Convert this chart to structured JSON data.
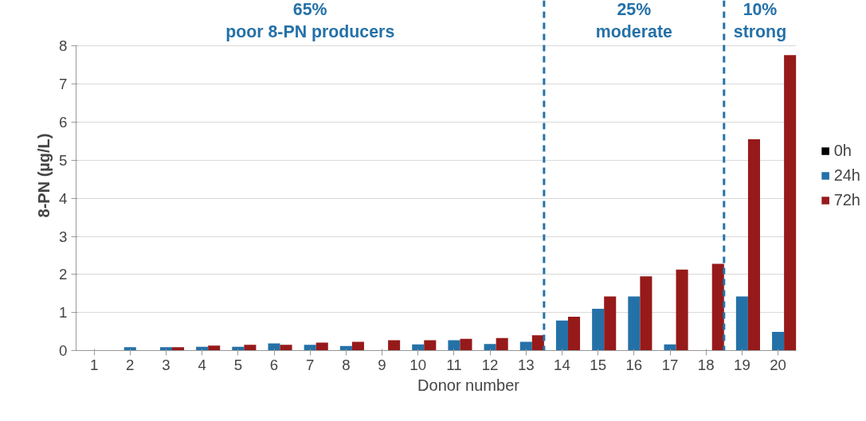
{
  "chart_data": {
    "type": "bar",
    "xlabel": "Donor number",
    "ylabel": "8-PN (µg/L)",
    "x": [
      1,
      2,
      3,
      4,
      5,
      6,
      7,
      8,
      9,
      10,
      11,
      12,
      13,
      14,
      15,
      16,
      17,
      18,
      19,
      20
    ],
    "xlim": [
      0.5,
      20.5
    ],
    "xticks": [
      1,
      2,
      3,
      4,
      5,
      6,
      7,
      8,
      9,
      10,
      11,
      12,
      13,
      14,
      15,
      16,
      17,
      18,
      19,
      20
    ],
    "ylim": [
      0,
      8
    ],
    "yticks": [
      0,
      1,
      2,
      3,
      4,
      5,
      6,
      7,
      8
    ],
    "grid": "y",
    "legend": "right",
    "series": [
      {
        "name": "0h",
        "color": "#000000",
        "values": [
          0,
          0,
          0,
          0,
          0,
          0,
          0,
          0,
          0,
          0,
          0,
          0,
          0,
          0,
          0,
          0,
          0,
          0,
          0,
          0
        ]
      },
      {
        "name": "24h",
        "color": "#2471a8",
        "values": [
          0,
          0.09,
          0.09,
          0.1,
          0.1,
          0.19,
          0.15,
          0.12,
          0,
          0.16,
          0.27,
          0.17,
          0.23,
          0.79,
          1.1,
          1.42,
          0.16,
          0,
          1.42,
          0.49
        ]
      },
      {
        "name": "72h",
        "color": "#961a1a",
        "values": [
          0,
          0,
          0.09,
          0.13,
          0.15,
          0.15,
          0.21,
          0.23,
          0.27,
          0.27,
          0.31,
          0.33,
          0.4,
          0.89,
          1.42,
          1.95,
          2.13,
          2.28,
          5.55,
          7.76
        ]
      }
    ],
    "ref_lines": [
      {
        "axis": "x",
        "value": 13.5,
        "color": "#2471a8",
        "line_style": "dashed"
      },
      {
        "axis": "x",
        "value": 18.5,
        "color": "#2471a8",
        "line_style": "dashed"
      }
    ],
    "annotations": [
      "65%\npoor 8-PN producers",
      "25%\nmoderate",
      "10%\nstrong"
    ]
  }
}
